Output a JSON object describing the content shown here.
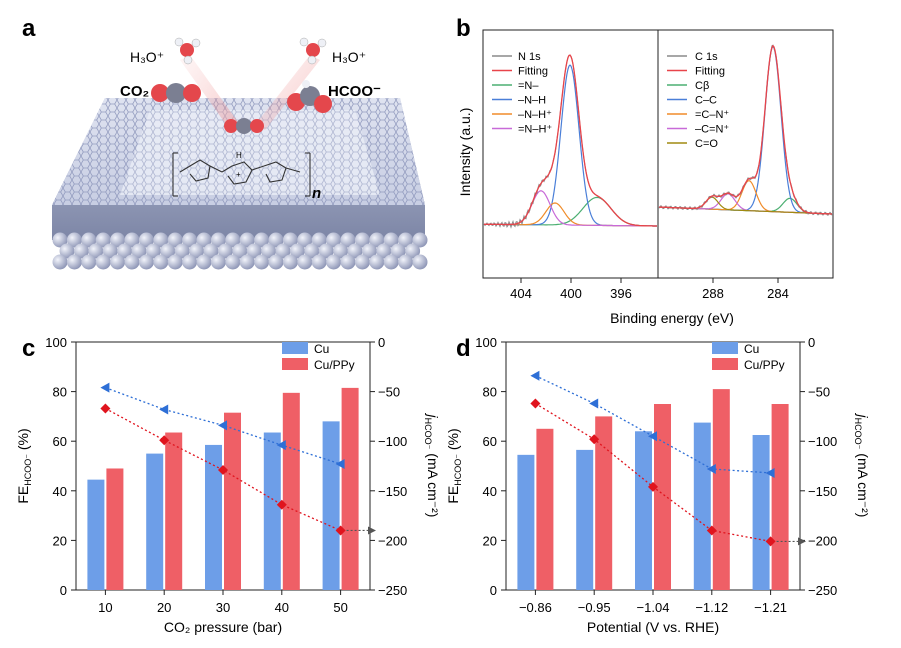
{
  "panel_letters": [
    "a",
    "b",
    "c",
    "d"
  ],
  "colors": {
    "cu": "#6d9ee8",
    "cupp": "#ef5f66",
    "blue_line": "#2e6fd6",
    "red_line": "#e0141e",
    "n1s_spec": "#8a8a8a",
    "fit": "#e8444a",
    "comp_green": "#4caf72",
    "comp_blue": "#4a7fd8",
    "comp_orange": "#f08c2a",
    "comp_purple": "#c86ad8",
    "comp_olive": "#a08a10"
  },
  "panel_a": {
    "labels": {
      "h3o_left": "H₃O⁺",
      "h3o_right": "H₃O⁺",
      "co2": "CO₂",
      "hcoo": "HCOO⁻",
      "n_sub": "n",
      "plus": "+",
      "nh": "H"
    }
  },
  "panel_b": {
    "xlabel": "Binding energy (eV)",
    "ylabel": "Intensity (a.u.)",
    "n1s": {
      "legend": [
        "N 1s",
        "Fitting",
        "=N–",
        "–N–H",
        "–N–H⁺",
        "=N–H⁺"
      ],
      "ticks": [
        "404",
        "400",
        "396"
      ]
    },
    "c1s": {
      "legend": [
        "C 1s",
        "Fitting",
        "Cβ",
        "C–C",
        "=C–N⁺",
        "–C=N⁺",
        "C=O"
      ],
      "ticks": [
        "288",
        "284"
      ]
    }
  },
  "chart_data": [
    {
      "panel": "c",
      "type": "bar",
      "xlabel": "CO₂ pressure (bar)",
      "ylabel": "FE HCOO⁻ (%)",
      "ylabel_right": "j HCOO⁻ (mA cm⁻²)",
      "categories": [
        "10",
        "20",
        "30",
        "40",
        "50"
      ],
      "ylim": [
        0,
        100
      ],
      "yticks": [
        "0",
        "20",
        "40",
        "60",
        "80",
        "100"
      ],
      "ylim_right": [
        -250,
        0
      ],
      "yticks_right": [
        "−250",
        "−200",
        "−150",
        "−100",
        "−50",
        "0"
      ],
      "series": [
        {
          "name": "Cu",
          "values": [
            44.5,
            55,
            58.5,
            63.5,
            68
          ]
        },
        {
          "name": "Cu/PPy",
          "values": [
            49,
            63.5,
            71.5,
            79.5,
            81.5
          ]
        }
      ],
      "current_density": {
        "Cu": [
          -46,
          -68,
          -84,
          -104,
          -123
        ],
        "Cu/PPy": [
          -67,
          -99,
          -129,
          -164,
          -190
        ]
      }
    },
    {
      "panel": "d",
      "type": "bar",
      "xlabel": "Potential (V vs. RHE)",
      "ylabel": "FE HCOO⁻ (%)",
      "ylabel_right": "j HCOO⁻ (mA cm⁻²)",
      "categories": [
        "−0.86",
        "−0.95",
        "−1.04",
        "−1.12",
        "−1.21"
      ],
      "ylim": [
        0,
        100
      ],
      "yticks": [
        "0",
        "20",
        "40",
        "60",
        "80",
        "100"
      ],
      "ylim_right": [
        -250,
        0
      ],
      "yticks_right": [
        "−250",
        "−200",
        "−150",
        "−100",
        "−50",
        "0"
      ],
      "series": [
        {
          "name": "Cu",
          "values": [
            54.5,
            56.5,
            64,
            67.5,
            62.5
          ]
        },
        {
          "name": "Cu/PPy",
          "values": [
            65,
            70,
            75,
            81,
            75
          ]
        }
      ],
      "current_density": {
        "Cu": [
          -34,
          -62,
          -95,
          -128,
          -132
        ],
        "Cu/PPy": [
          -62,
          -98,
          -146,
          -190,
          -201
        ]
      }
    }
  ]
}
